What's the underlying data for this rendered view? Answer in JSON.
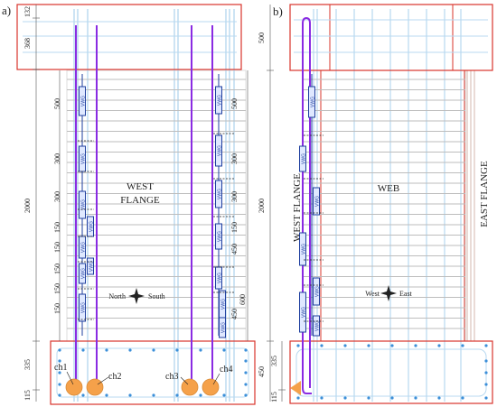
{
  "panel_a": {
    "label": "a)",
    "dimensions": {
      "top1": "132",
      "top2": "368",
      "height": "2000",
      "bottom": "335",
      "base": "115",
      "left_column": [
        "500",
        "300",
        "300",
        "150",
        "150",
        "150",
        "150",
        "150"
      ],
      "right_column": [
        "500",
        "300",
        "300",
        "150",
        "450",
        "450",
        "600"
      ]
    },
    "flange_label_line1": "WEST",
    "flange_label_line2": "FLANGE",
    "compass": {
      "west": "North",
      "east": "South"
    },
    "channels": [
      "ch1",
      "ch2",
      "ch3",
      "ch4"
    ],
    "gauge_label": "VWG"
  },
  "panel_b": {
    "label": "b)",
    "dimensions": {
      "top": "500",
      "height": "2000",
      "bottom1": "335",
      "bottom2": "450",
      "base": "115"
    },
    "west_flange_label": "WEST FLANGE",
    "web_label": "WEB",
    "east_flange_label": "EAST FLANGE",
    "compass": {
      "west": "West",
      "east": "East"
    },
    "gauge_label": "VWG"
  },
  "colors": {
    "outline_red": "#d9342b",
    "rebar_blue": "#b8d9f0",
    "tendon_purple": "#8a2be2",
    "gauge_blue": "#1f3f9f",
    "anchor_orange": "#f5a14a",
    "stirrup_grey": "#bdbdbd"
  }
}
